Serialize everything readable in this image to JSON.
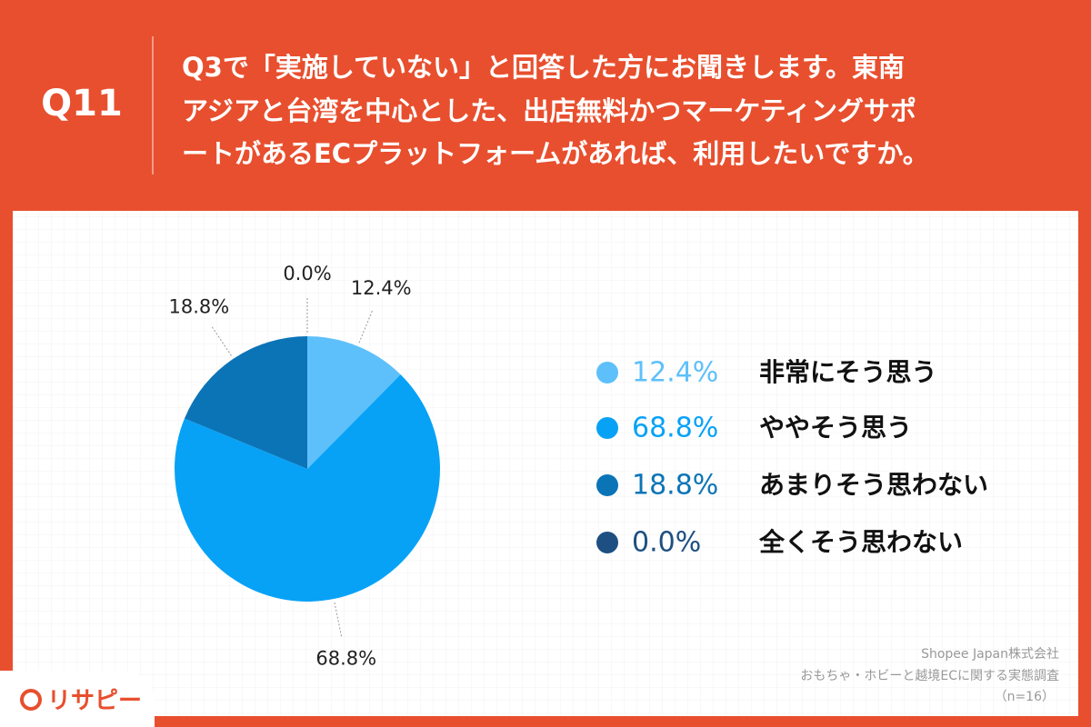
{
  "header": {
    "number": "Q11",
    "question": [
      "Q3で「実施していない」と回答した方にお聞きします。東南",
      "アジアと台湾を中心とした、出店無料かつマーケティングサポ",
      "ートがあるECプラットフォームがあれば、利用したいですか。"
    ]
  },
  "chart_data": {
    "type": "pie",
    "categories": [
      "非常にそう思う",
      "ややそう思う",
      "あまりそう思わない",
      "全くそう思わない"
    ],
    "values": [
      12.4,
      68.8,
      18.8,
      0.0
    ],
    "value_labels": [
      "12.4%",
      "68.8%",
      "18.8%",
      "0.0%"
    ],
    "colors": [
      "#5ec0fb",
      "#07a2f6",
      "#0b74b7",
      "#1d4f82"
    ]
  },
  "source": [
    "Shopee Japan株式会社",
    "おもちゃ・ホビーと越境ECに関する実態調査",
    "（n=16）"
  ],
  "logo": "リサピー"
}
